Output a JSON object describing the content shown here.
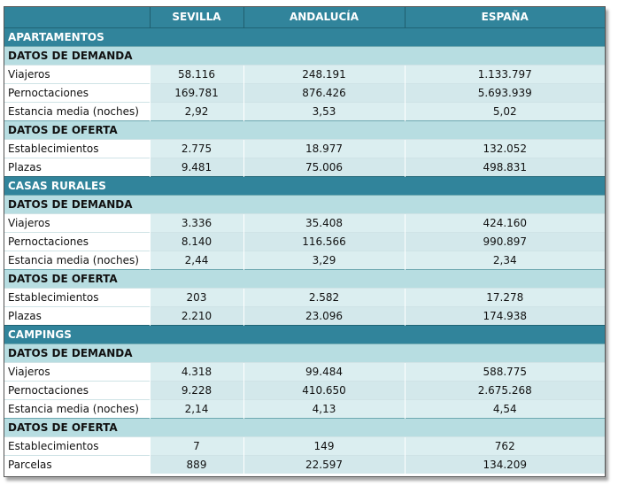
{
  "header": {
    "blank": "",
    "col1": "SEVILLA",
    "col2": "ANDALUCÍA",
    "col3": "ESPAÑA"
  },
  "sections": [
    {
      "title": "APARTAMENTOS",
      "demanda": {
        "title": "DATOS DE DEMANDA",
        "rows": [
          {
            "label": "Viajeros",
            "sevilla": "58.116",
            "andalucia": "248.191",
            "espana": "1.133.797"
          },
          {
            "label": "Pernoctaciones",
            "sevilla": "169.781",
            "andalucia": "876.426",
            "espana": "5.693.939"
          },
          {
            "label": "Estancia media (noches)",
            "sevilla": "2,92",
            "andalucia": "3,53",
            "espana": "5,02"
          }
        ]
      },
      "oferta": {
        "title": "DATOS DE OFERTA",
        "rows": [
          {
            "label": "Establecimientos",
            "sevilla": "2.775",
            "andalucia": "18.977",
            "espana": "132.052"
          },
          {
            "label": "Plazas",
            "sevilla": "9.481",
            "andalucia": "75.006",
            "espana": "498.831"
          }
        ]
      }
    },
    {
      "title": "CASAS RURALES",
      "demanda": {
        "title": "DATOS DE DEMANDA",
        "rows": [
          {
            "label": "Viajeros",
            "sevilla": "3.336",
            "andalucia": "35.408",
            "espana": "424.160"
          },
          {
            "label": "Pernoctaciones",
            "sevilla": "8.140",
            "andalucia": "116.566",
            "espana": "990.897"
          },
          {
            "label": "Estancia media (noches)",
            "sevilla": "2,44",
            "andalucia": "3,29",
            "espana": "2,34"
          }
        ]
      },
      "oferta": {
        "title": "DATOS DE OFERTA",
        "rows": [
          {
            "label": "Establecimientos",
            "sevilla": "203",
            "andalucia": "2.582",
            "espana": "17.278"
          },
          {
            "label": "Plazas",
            "sevilla": "2.210",
            "andalucia": "23.096",
            "espana": "174.938"
          }
        ]
      }
    },
    {
      "title": "CAMPINGS",
      "demanda": {
        "title": "DATOS DE DEMANDA",
        "rows": [
          {
            "label": "Viajeros",
            "sevilla": "4.318",
            "andalucia": "99.484",
            "espana": "588.775"
          },
          {
            "label": "Pernoctaciones",
            "sevilla": "9.228",
            "andalucia": "410.650",
            "espana": "2.675.268"
          },
          {
            "label": "Estancia media (noches)",
            "sevilla": "2,14",
            "andalucia": "4,13",
            "espana": "4,54"
          }
        ]
      },
      "oferta": {
        "title": "DATOS DE OFERTA",
        "rows": [
          {
            "label": "Establecimientos",
            "sevilla": "7",
            "andalucia": "149",
            "espana": "762"
          },
          {
            "label": "Parcelas",
            "sevilla": "889",
            "andalucia": "22.597",
            "espana": "134.209"
          }
        ]
      }
    }
  ]
}
